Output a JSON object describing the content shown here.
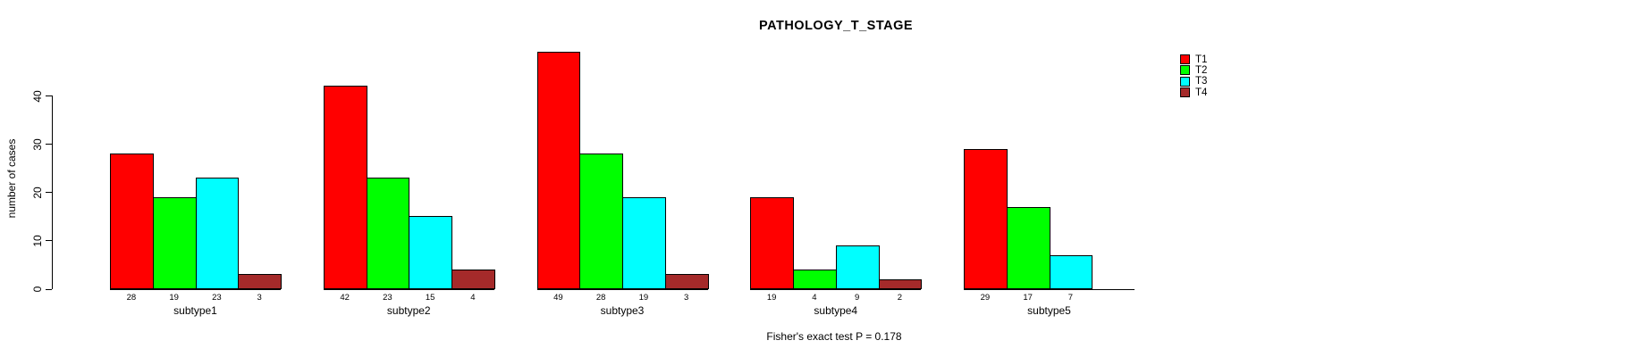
{
  "title": "PATHOLOGY_T_STAGE",
  "chart_data": {
    "type": "bar",
    "title": "PATHOLOGY_T_STAGE",
    "xlabel": "",
    "ylabel": "number of cases",
    "categories": [
      "subtype1",
      "subtype2",
      "subtype3",
      "subtype4",
      "subtype5"
    ],
    "series": [
      {
        "name": "T1",
        "color": "#FF0000",
        "values": [
          28,
          42,
          49,
          19,
          29
        ]
      },
      {
        "name": "T2",
        "color": "#00FF00",
        "values": [
          19,
          23,
          28,
          4,
          17
        ]
      },
      {
        "name": "T3",
        "color": "#00FFFF",
        "values": [
          23,
          15,
          19,
          9,
          7
        ]
      },
      {
        "name": "T4",
        "color": "#A52A2A",
        "values": [
          3,
          4,
          3,
          2,
          0
        ]
      }
    ],
    "bar_value_labels": true,
    "yticks": [
      0,
      10,
      20,
      30,
      40
    ],
    "ylim": [
      0,
      49
    ],
    "grid": false,
    "legend_position": "top-right",
    "annotation": "Fisher's exact test P = 0.178"
  },
  "colors": {
    "background": "#FFFFFF",
    "axis": "#000000",
    "text": "#000000"
  }
}
